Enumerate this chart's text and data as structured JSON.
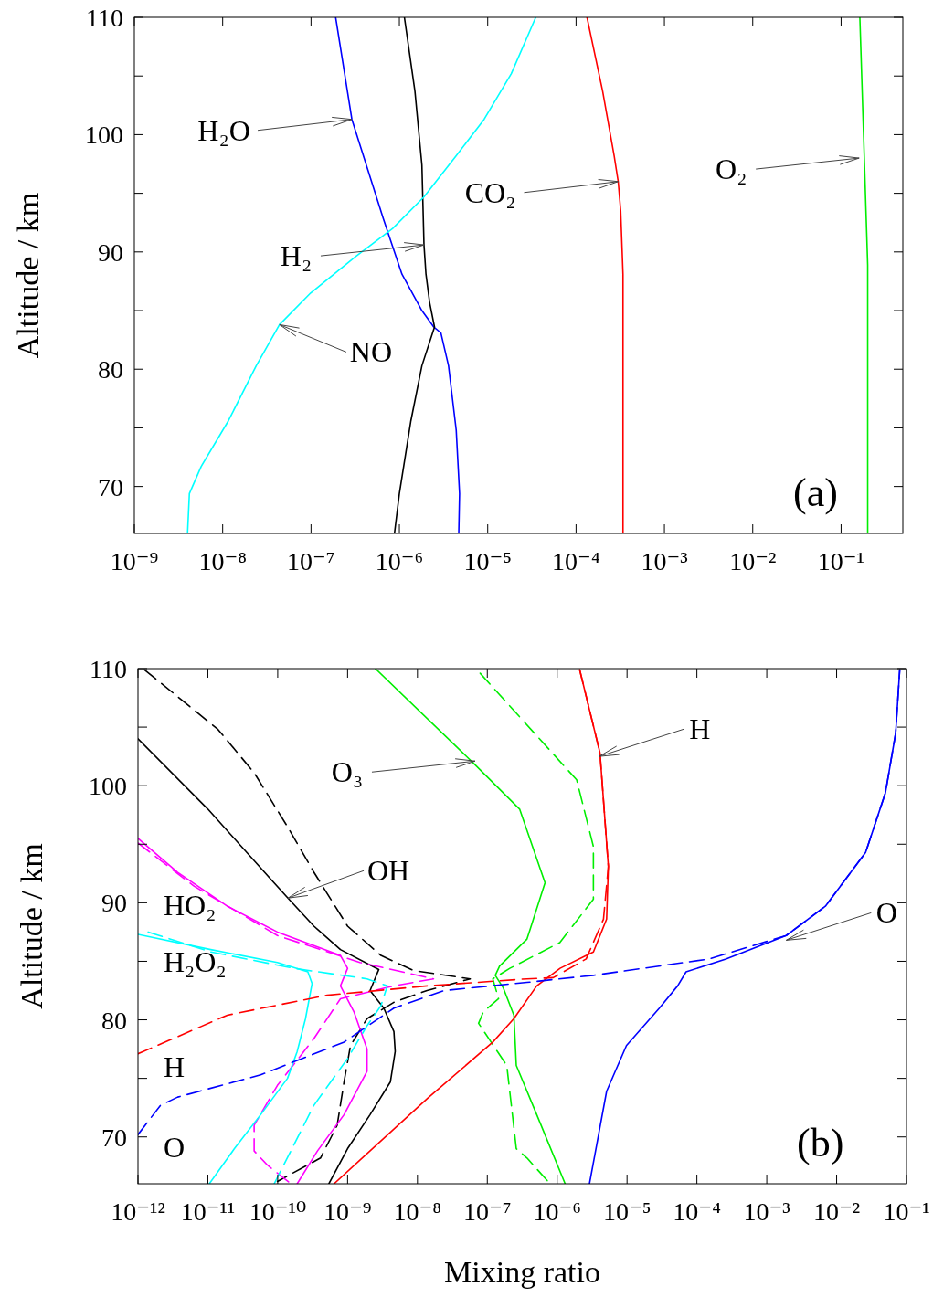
{
  "chart_data": [
    {
      "type": "line",
      "log": "x",
      "ylabel": "Altitude / km",
      "xlim": [
        1e-09,
        0.5
      ],
      "ylim": [
        66,
        110
      ],
      "xticks": [
        {
          "value": 1e-09,
          "label": "10⁻⁹"
        },
        {
          "value": 1e-08,
          "label": "10⁻⁸"
        },
        {
          "value": 1e-07,
          "label": "10⁻⁷"
        },
        {
          "value": 1e-06,
          "label": "10⁻⁶"
        },
        {
          "value": 1e-05,
          "label": "10⁻⁵"
        },
        {
          "value": 0.0001,
          "label": "10⁻⁴"
        },
        {
          "value": 0.001,
          "label": "10⁻³"
        },
        {
          "value": 0.01,
          "label": "10⁻²"
        },
        {
          "value": 0.1,
          "label": "10⁻¹"
        }
      ],
      "yticks": [
        70,
        {
          "value": 75,
          "label": null
        },
        80,
        {
          "value": 85,
          "label": null
        },
        90,
        {
          "value": 95,
          "label": null
        },
        100,
        {
          "value": 105,
          "label": null
        },
        110
      ],
      "line_style": "solid",
      "series": [
        {
          "color": "#0000ff",
          "x": [
            1.9e-07,
            2.9e-07,
            6.6e-07,
            1.07e-06,
            1.8e-06,
            2.45e-06,
            2.95e-06,
            3.6e-06,
            4.4e-06,
            4.8e-06,
            4.7e-06
          ],
          "values": [
            110,
            101.3,
            92.8,
            88.1,
            85.0,
            83.6,
            83.1,
            80.3,
            74.8,
            69.4,
            66
          ]
        },
        {
          "color": "#000000",
          "x": [
            1.14e-06,
            1.5e-06,
            1.8e-06,
            1.9e-06,
            2e-06,
            2.2e-06,
            2.5e-06,
            1.8e-06,
            1.35e-06,
            1e-06,
            8.8e-07
          ],
          "values": [
            110,
            103.7,
            97.4,
            90.6,
            88.1,
            85.7,
            83.6,
            80.3,
            75.6,
            69.4,
            66
          ]
        },
        {
          "color": "#00ffff",
          "x": [
            3.5e-05,
            1.85e-05,
            9.1e-06,
            4.4e-06,
            1.9e-06,
            8.4e-07,
            3.2e-07,
            9.9e-08,
            4.4e-08,
            2.4e-08,
            1.16e-08,
            5.7e-09,
            4.2e-09,
            4e-09
          ],
          "values": [
            110,
            105.2,
            101.3,
            98.2,
            94.7,
            92.0,
            89.6,
            86.5,
            83.8,
            80.3,
            75.6,
            71.7,
            69.4,
            66
          ]
        },
        {
          "color": "#ff0000",
          "x": [
            0.000133,
            0.0002,
            0.00027,
            0.0003,
            0.00032,
            0.00034,
            0.00034
          ],
          "values": [
            110,
            103.7,
            98.2,
            96.0,
            93.5,
            88.1,
            66
          ]
        },
        {
          "color": "#00ee00",
          "x": [
            0.163,
            0.18,
            0.2,
            0.2
          ],
          "values": [
            110,
            99.8,
            88.9,
            66
          ]
        }
      ],
      "annotations": [
        {
          "text": "H₂O",
          "x": 2.9e-07,
          "y": 101.3
        },
        {
          "text": "H₂",
          "x": 1.9e-06,
          "y": 90.6
        },
        {
          "text": "NO",
          "x": 4.4e-08,
          "y": 83.8
        },
        {
          "text": "CO₂",
          "x": 0.0003,
          "y": 96.0
        },
        {
          "text": "O₂",
          "x": 0.16,
          "y": 98.0
        },
        "(a)"
      ]
    },
    {
      "type": "line",
      "log": "x",
      "xlabel": "Mixing ratio",
      "ylabel": "Altitude / km",
      "xlim": [
        1e-12,
        0.1
      ],
      "ylim": [
        66,
        110
      ],
      "xticks": [
        {
          "value": 1e-12,
          "label": "10⁻¹²"
        },
        {
          "value": 1e-11,
          "label": "10⁻¹¹"
        },
        {
          "value": 1e-10,
          "label": "10⁻¹⁰"
        },
        {
          "value": 1e-09,
          "label": "10⁻⁹"
        },
        {
          "value": 1e-08,
          "label": "10⁻⁸"
        },
        {
          "value": 1e-07,
          "label": "10⁻⁷"
        },
        {
          "value": 1e-06,
          "label": "10⁻⁶"
        },
        {
          "value": 1e-05,
          "label": "10⁻⁵"
        },
        {
          "value": 0.0001,
          "label": "10⁻⁴"
        },
        {
          "value": 0.001,
          "label": "10⁻³"
        },
        {
          "value": 0.01,
          "label": "10⁻²"
        },
        {
          "value": 0.1,
          "label": "10⁻¹"
        }
      ],
      "yticks": [
        70,
        {
          "value": 75,
          "label": null
        },
        80,
        {
          "value": 85,
          "label": null
        },
        90,
        {
          "value": 95,
          "label": null
        },
        100,
        {
          "value": 105,
          "label": null
        },
        110
      ],
      "line_style": "solid",
      "series": [
        {
          "color": "#000000",
          "x": [
            1e-12,
            1e-11,
            8e-11,
            1.4e-10,
            3.3e-10,
            7.9e-10,
            2.8e-09,
            2.1e-09,
            3.3e-09,
            4.6e-09,
            4.8e-09,
            4.1e-09,
            2.1e-09,
            1e-09,
            5.4e-10
          ],
          "values": [
            104.0,
            98.0,
            92.0,
            90.4,
            88.0,
            86.0,
            84.3,
            82.5,
            81.0,
            79.0,
            77.3,
            74.7,
            71.9,
            69.0,
            66
          ]
        },
        {
          "color": "#000000",
          "line_style": "dashed",
          "x": [
            1.24e-12,
            1.4e-11,
            4.6e-11,
            1.38e-10,
            3.3e-10,
            1e-09,
            3e-09,
            8.9e-09,
            5.7e-08,
            1.37e-08,
            4.6e-09,
            1.9e-09,
            1.1e-09,
            8.9e-10,
            7.1e-10,
            4.1e-10,
            9.9e-11
          ],
          "values": [
            109.9,
            104.8,
            101.1,
            96.5,
            92.6,
            88.0,
            85.5,
            84.2,
            83.5,
            82.5,
            81.5,
            80.1,
            77.8,
            74.7,
            71.0,
            68.2,
            66.2
          ]
        },
        {
          "name": "HO₂",
          "color": "#ff00ff",
          "x": [
            1e-12,
            3.7e-12,
            1.9e-11,
            9.9e-11,
            7.9e-10,
            1e-09,
            7.9e-10,
            1.23e-09,
            1.9e-09,
            1.9e-09,
            8.9e-10,
            3.7e-10,
            1.9e-10
          ],
          "values": [
            95.5,
            92.6,
            89.7,
            87.5,
            85.5,
            84.4,
            82.9,
            80.7,
            77.5,
            75.6,
            71.9,
            68.8,
            66
          ]
        },
        {
          "color": "#ff00ff",
          "line_style": "dashed",
          "x": [
            1e-12,
            6.4e-12,
            9.9e-11,
            1.5e-09,
            1.7e-08,
            4.6e-09,
            7.9e-10,
            3.3e-10,
            9.9e-11,
            4.6e-11,
            4.6e-11,
            7.1e-11,
            1.54e-10
          ],
          "values": [
            95.1,
            91.4,
            87.2,
            84.9,
            83.5,
            82.9,
            81.8,
            78.4,
            74.4,
            71.0,
            68.8,
            67.6,
            66
          ]
        },
        {
          "name": "H₂O₂",
          "color": "#00ffff",
          "x": [
            1e-12,
            1.1e-11,
            9.9e-11,
            2.7e-10,
            3.1e-10,
            2.5e-10,
            1.9e-10,
            1.38e-10,
            5.7e-11,
            2.4e-11,
            1.05e-11
          ],
          "values": [
            87.3,
            86.0,
            84.9,
            84.1,
            83.1,
            80.1,
            77.3,
            75.0,
            71.9,
            69.0,
            66
          ]
        },
        {
          "color": "#00ffff",
          "line_style": "dashed",
          "x": [
            1.4e-12,
            1.1e-11,
            1.7e-10,
            1.9e-09,
            3.7e-09,
            3e-09,
            1.9e-09,
            1e-09,
            3.3e-10,
            8.9e-11
          ],
          "values": [
            87.5,
            85.8,
            84.4,
            83.5,
            82.9,
            81.2,
            79.5,
            76.7,
            72.7,
            66
          ]
        },
        {
          "color": "#00ee00",
          "x": [
            2.5e-09,
            6.4e-08,
            2.9e-07,
            6.7e-07,
            3.7e-07,
            1.5e-07,
            1.3e-07,
            1.7e-07,
            2.4e-07,
            2.6e-07,
            5.1e-07,
            1.3e-06
          ],
          "values": [
            110,
            101.9,
            98.0,
            91.7,
            86.9,
            84.6,
            83.8,
            82.7,
            80.4,
            76.1,
            71.9,
            66
          ]
        },
        {
          "color": "#00ee00",
          "line_style": "dashed",
          "x": [
            7.9e-08,
            1.9e-06,
            3.3e-06,
            3.3e-06,
            1.09e-06,
            2.1e-07,
            1.2e-07,
            1.45e-07,
            8.8e-08,
            7.5e-08,
            1.9e-07,
            2.6e-07,
            3.7e-07,
            7.9e-07
          ],
          "values": [
            109.6,
            100.5,
            94.8,
            90.3,
            86.6,
            84.4,
            83.5,
            81.8,
            80.7,
            79.7,
            76.1,
            69.0,
            68.2,
            66
          ]
        },
        {
          "color": "#ff0000",
          "x": [
            2.1e-06,
            4.1e-06,
            5.4e-06,
            5.1e-06,
            3.3e-06,
            1.1e-06,
            5.1e-07,
            2.4e-07,
            1.2e-07,
            1.4e-08,
            6.4e-10
          ],
          "values": [
            109.9,
            102.8,
            93.1,
            88.6,
            85.8,
            84.4,
            82.9,
            80.1,
            78.1,
            73.3,
            66
          ]
        },
        {
          "name": "H",
          "color": "#ff0000",
          "line_style": "dashed",
          "x": [
            1e-12,
            1.9e-11,
            5.1e-10,
            1.4e-08,
            3.7e-07,
            8.8e-07,
            2.6e-06,
            4.6e-06,
            5.4e-06,
            4.1e-06,
            2.1e-06
          ],
          "values": [
            77.1,
            80.4,
            82.1,
            82.9,
            83.5,
            83.6,
            85.2,
            88.6,
            93.1,
            102.8,
            109.9
          ]
        },
        {
          "color": "#0000ff",
          "x": [
            2.9e-06,
            5.1e-06,
            9.8e-06,
            2.9e-05,
            5.3e-05,
            7e-05,
            0.00026,
            0.0019,
            0.0069,
            0.026,
            0.05,
            0.07,
            0.08
          ],
          "values": [
            66,
            73.9,
            77.8,
            81.0,
            82.9,
            84.1,
            85.2,
            87.2,
            89.7,
            94.3,
            99.4,
            104.5,
            109.9
          ]
        },
        {
          "name": "O",
          "color": "#0000ff",
          "line_style": "dashed",
          "x": [
            1e-12,
            2.1e-12,
            3.7e-12,
            5.7e-11,
            8.9e-10,
            4.6e-09,
            2.4e-08,
            3.7e-07,
            3.3e-06,
            0.00015,
            0.0019,
            0.0069,
            0.026,
            0.05,
            0.07,
            0.08
          ],
          "values": [
            70.2,
            72.7,
            73.4,
            75.3,
            78.1,
            81.0,
            82.5,
            83.2,
            83.8,
            85.2,
            87.2,
            89.7,
            94.3,
            99.4,
            104.5,
            109.9
          ]
        }
      ],
      "annotations": [
        {
          "text": "O₃",
          "x": 6.7e-08,
          "y": 102.1
        },
        {
          "text": "OH",
          "x": 1.4e-10,
          "y": 90.4
        },
        {
          "text": "H",
          "x": 4e-06,
          "y": 102.5
        },
        {
          "text": "O",
          "x": 0.0019,
          "y": 86.8
        },
        "(b)"
      ]
    }
  ]
}
